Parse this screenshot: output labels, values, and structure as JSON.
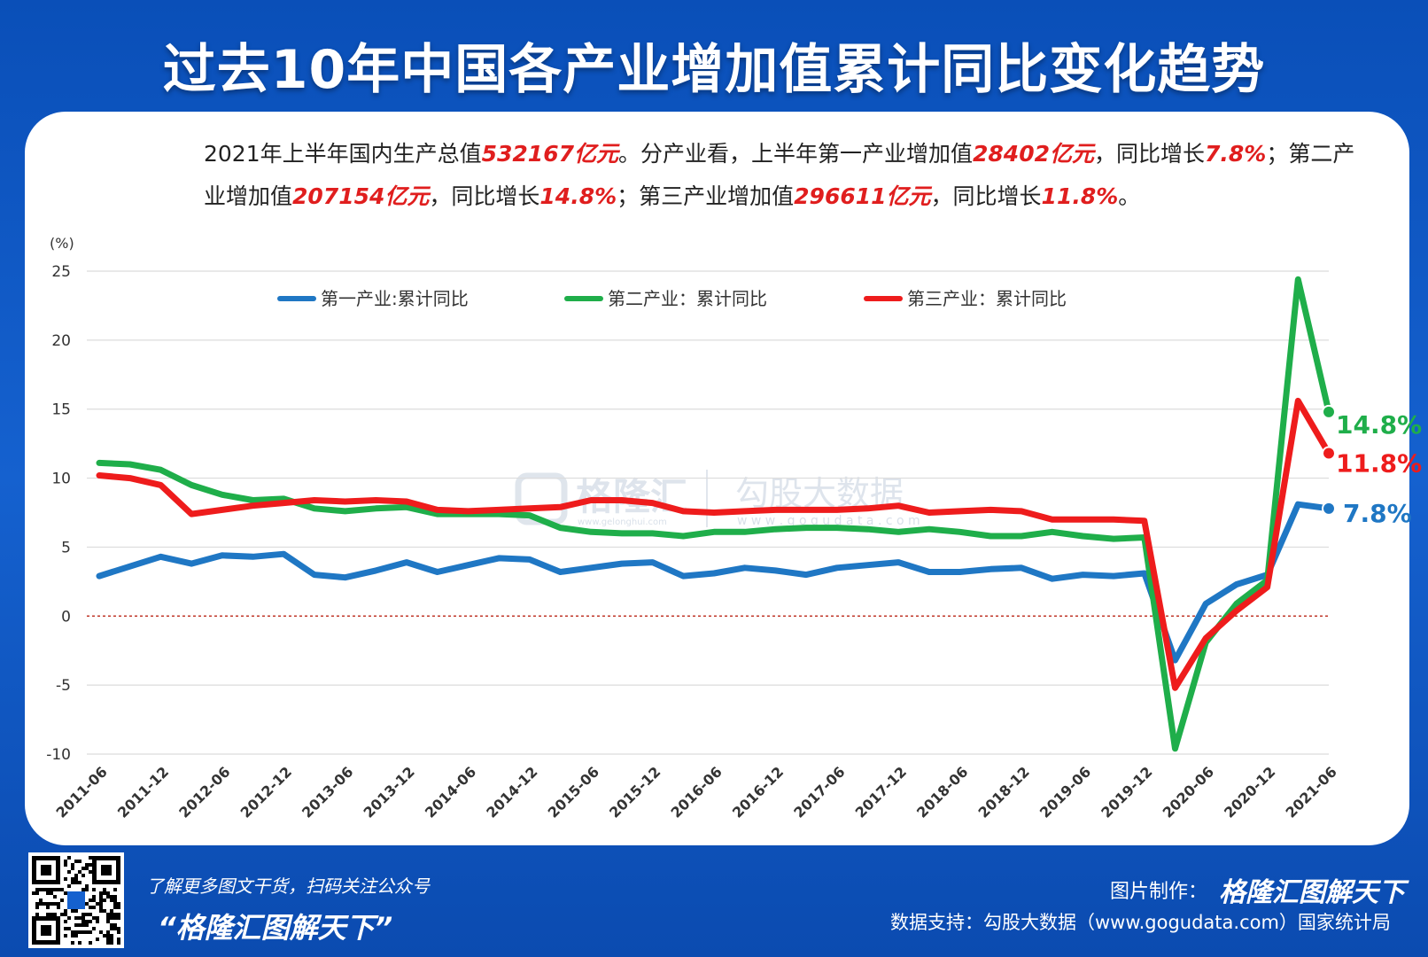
{
  "title": "过去10年中国各产业增加值累计同比变化趋势",
  "summary": [
    {
      "t": "2021年上半年国内生产总值",
      "h": false
    },
    {
      "t": "532167亿元",
      "h": true
    },
    {
      "t": "。分产业看，上半年第一产业增加值",
      "h": false
    },
    {
      "t": "28402亿元",
      "h": true
    },
    {
      "t": "，同比增长",
      "h": false
    },
    {
      "t": "7.8%",
      "h": true
    },
    {
      "t": "；第二产业增加值",
      "h": false
    },
    {
      "t": "207154亿元",
      "h": true
    },
    {
      "t": "，同比增长",
      "h": false
    },
    {
      "t": "14.8%",
      "h": true
    },
    {
      "t": "；第三产业增加值",
      "h": false
    },
    {
      "t": "296611亿元",
      "h": true
    },
    {
      "t": "，同比增长",
      "h": false
    },
    {
      "t": "11.8%",
      "h": true
    },
    {
      "t": "。",
      "h": false
    }
  ],
  "watermark": {
    "brand1": "格隆汇",
    "brand1_url": "www.gelonghui.com",
    "brand2": "勾股大数据",
    "brand2_url": "w w w . g o g u d a t a . c o m"
  },
  "footer": {
    "prompt": "了解更多图文干货，扫码关注公众号",
    "account": "“格隆汇图解天下”",
    "maker_label": "图片制作：",
    "maker_name": "格隆汇图解天下",
    "source": "数据支持：勾股大数据（www.gogudata.com）国家统计局"
  },
  "chart_data": {
    "type": "line",
    "ylabel": "(%)",
    "ylim": [
      -10,
      25
    ],
    "yticks": [
      25,
      20,
      15,
      10,
      5,
      0,
      -5,
      -10
    ],
    "grid": true,
    "legend_position": "top",
    "zero_line_color": "#c0392b",
    "x_tick_labels": [
      "2011-06",
      "2011-12",
      "2012-06",
      "2012-12",
      "2013-06",
      "2013-12",
      "2014-06",
      "2014-12",
      "2015-06",
      "2015-12",
      "2016-06",
      "2016-12",
      "2017-06",
      "2017-12",
      "2018-06",
      "2018-12",
      "2019-06",
      "2019-12",
      "2020-06",
      "2020-12",
      "2021-06"
    ],
    "x": [
      "2011-06",
      "2011-09",
      "2011-12",
      "2012-03",
      "2012-06",
      "2012-09",
      "2012-12",
      "2013-03",
      "2013-06",
      "2013-09",
      "2013-12",
      "2014-03",
      "2014-06",
      "2014-09",
      "2014-12",
      "2015-03",
      "2015-06",
      "2015-09",
      "2015-12",
      "2016-03",
      "2016-06",
      "2016-09",
      "2016-12",
      "2017-03",
      "2017-06",
      "2017-09",
      "2017-12",
      "2018-03",
      "2018-06",
      "2018-09",
      "2018-12",
      "2019-03",
      "2019-06",
      "2019-09",
      "2019-12",
      "2020-03",
      "2020-06",
      "2020-09",
      "2020-12",
      "2021-03",
      "2021-06"
    ],
    "series": [
      {
        "name": "第一产业:累计同比",
        "color": "#1f77c4",
        "end_label": "7.8%",
        "values": [
          2.9,
          3.6,
          4.3,
          3.8,
          4.4,
          4.3,
          4.5,
          3.0,
          2.8,
          3.3,
          3.9,
          3.2,
          3.7,
          4.2,
          4.1,
          3.2,
          3.5,
          3.8,
          3.9,
          2.9,
          3.1,
          3.5,
          3.3,
          3.0,
          3.5,
          3.7,
          3.9,
          3.2,
          3.2,
          3.4,
          3.5,
          2.7,
          3.0,
          2.9,
          3.1,
          -3.2,
          0.9,
          2.3,
          3.0,
          8.1,
          7.8
        ]
      },
      {
        "name": "第二产业：累计同比",
        "color": "#1fae4a",
        "end_label": "14.8%",
        "values": [
          11.1,
          11.0,
          10.6,
          9.5,
          8.8,
          8.4,
          8.5,
          7.8,
          7.6,
          7.8,
          7.9,
          7.4,
          7.4,
          7.4,
          7.3,
          6.4,
          6.1,
          6.0,
          6.0,
          5.8,
          6.1,
          6.1,
          6.3,
          6.4,
          6.4,
          6.3,
          6.1,
          6.3,
          6.1,
          5.8,
          5.8,
          6.1,
          5.8,
          5.6,
          5.7,
          -9.6,
          -1.9,
          0.9,
          2.6,
          24.4,
          14.8
        ]
      },
      {
        "name": "第三产业：累计同比",
        "color": "#ee1c1c",
        "end_label": "11.8%",
        "values": [
          10.2,
          10.0,
          9.5,
          7.4,
          7.7,
          8.0,
          8.2,
          8.4,
          8.3,
          8.4,
          8.3,
          7.7,
          7.6,
          7.7,
          7.8,
          7.9,
          8.4,
          8.4,
          8.2,
          7.6,
          7.5,
          7.6,
          7.7,
          7.7,
          7.7,
          7.8,
          8.0,
          7.5,
          7.6,
          7.7,
          7.6,
          7.0,
          7.0,
          7.0,
          6.9,
          -5.2,
          -1.6,
          0.4,
          2.1,
          15.6,
          11.8
        ]
      }
    ]
  }
}
